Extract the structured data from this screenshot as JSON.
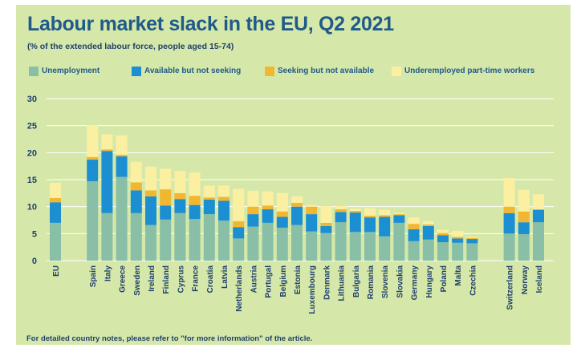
{
  "footnote": "For detailed country notes, please refer to \"for more information\" of the article.",
  "chart_data": {
    "type": "bar",
    "stacked": true,
    "title": "Labour market slack in the EU, Q2 2021",
    "subtitle": "(% of the extended labour force, people aged 15-74)",
    "xlabel": "",
    "ylabel": "",
    "ylim": [
      0,
      30
    ],
    "yticks": [
      0,
      5,
      10,
      15,
      20,
      25,
      30
    ],
    "grid": true,
    "legend_position": "top",
    "groups": [
      [
        "EU"
      ],
      [
        "Spain",
        "Italy",
        "Greece",
        "Sweden",
        "Ireland",
        "Finland",
        "Cyprus",
        "France",
        "Croatia",
        "Latvia",
        "Netherlands",
        "Austria",
        "Portugal",
        "Belgium",
        "Estonia",
        "Luxembourg",
        "Denmark",
        "Lithuania",
        "Bulgaria",
        "Romania",
        "Slovenia",
        "Slovakia",
        "Germany",
        "Hungary",
        "Poland",
        "Malta",
        "Czechia"
      ],
      [
        "Switzerland",
        "Norway",
        "Iceland"
      ]
    ],
    "categories": [
      "EU",
      "Spain",
      "Italy",
      "Greece",
      "Sweden",
      "Ireland",
      "Finland",
      "Cyprus",
      "France",
      "Croatia",
      "Latvia",
      "Netherlands",
      "Austria",
      "Portugal",
      "Belgium",
      "Estonia",
      "Luxembourg",
      "Denmark",
      "Lithuania",
      "Bulgaria",
      "Romania",
      "Slovenia",
      "Slovakia",
      "Germany",
      "Hungary",
      "Poland",
      "Malta",
      "Czechia",
      "Switzerland",
      "Norway",
      "Iceland"
    ],
    "series": [
      {
        "name": "Unemployment",
        "color": "#88bfa6",
        "values": [
          7.0,
          14.7,
          8.8,
          15.5,
          8.8,
          6.6,
          7.6,
          8.8,
          7.7,
          8.6,
          7.4,
          4.1,
          6.3,
          7.0,
          6.1,
          6.6,
          5.4,
          5.1,
          7.1,
          5.3,
          5.3,
          4.5,
          7.0,
          3.6,
          3.9,
          3.4,
          3.3,
          3.2,
          5.0,
          4.9,
          7.1
        ]
      },
      {
        "name": "Available but not seeking",
        "color": "#1b8fd2",
        "values": [
          3.8,
          4.0,
          11.5,
          3.8,
          4.2,
          5.3,
          2.6,
          2.6,
          2.6,
          2.7,
          3.7,
          2.1,
          2.3,
          2.5,
          2.0,
          3.4,
          3.2,
          1.3,
          1.9,
          3.6,
          2.7,
          3.6,
          1.4,
          2.2,
          2.5,
          1.3,
          0.8,
          0.8,
          3.8,
          2.2,
          2.3
        ]
      },
      {
        "name": "Seeking but not available",
        "color": "#f2b731",
        "values": [
          0.8,
          0.5,
          0.3,
          0.3,
          1.5,
          1.1,
          3.0,
          1.1,
          1.7,
          0.4,
          0.7,
          1.1,
          1.4,
          0.7,
          1.0,
          0.7,
          1.4,
          0.6,
          0.5,
          0.3,
          0.3,
          0.3,
          0.2,
          1.0,
          0.3,
          0.4,
          0.3,
          0.2,
          1.2,
          2.0,
          0.1
        ]
      },
      {
        "name": "Underemployed part-time workers",
        "color": "#fbf0a1",
        "values": [
          2.8,
          5.9,
          2.8,
          3.6,
          3.8,
          4.4,
          3.8,
          4.1,
          4.3,
          2.2,
          2.1,
          6.0,
          2.9,
          2.6,
          3.4,
          1.2,
          0.3,
          3.1,
          0.6,
          0.4,
          1.4,
          1.0,
          0.2,
          1.2,
          0.6,
          0.6,
          1.1,
          0.2,
          5.3,
          4.0,
          2.8
        ]
      }
    ]
  }
}
